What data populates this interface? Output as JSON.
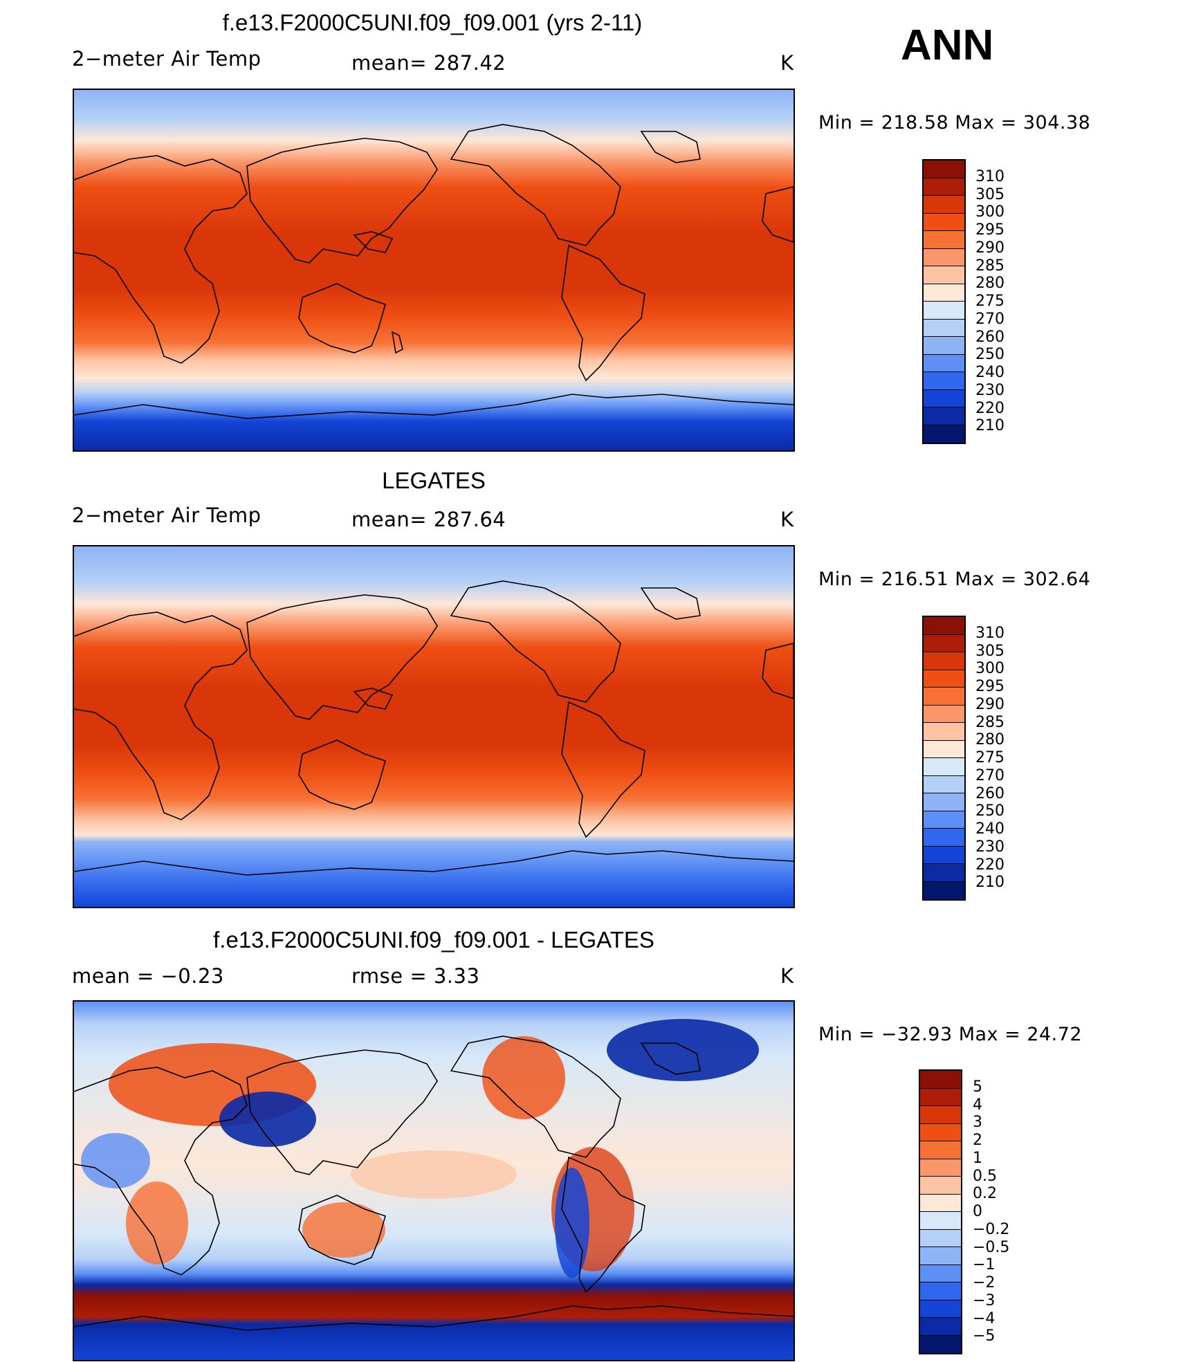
{
  "header": {
    "season": "ANN"
  },
  "panels": [
    {
      "title": "f.e13.F2000C5UNI.f09_f09.001 (yrs 2-11)",
      "left_label": "2−meter Air Temp",
      "center_label": "mean=  287.42",
      "units": "K",
      "minmax": "Min  =  218.58  Max  =  304.38",
      "levels": [
        "310",
        "305",
        "300",
        "295",
        "290",
        "285",
        "280",
        "275",
        "270",
        "260",
        "250",
        "240",
        "230",
        "220",
        "210"
      ],
      "colors": [
        "#8b1005",
        "#ae1d07",
        "#d93609",
        "#ef4f13",
        "#f87134",
        "#fa9669",
        "#fcc4a4",
        "#fde7d7",
        "#d7e8f9",
        "#b5d0f7",
        "#8fb4f6",
        "#5d8ff5",
        "#2f68ed",
        "#1445d6",
        "#0a2aa6",
        "#04176e"
      ]
    },
    {
      "title": "LEGATES",
      "left_label": "2−meter Air Temp",
      "center_label": "mean=  287.64",
      "units": "K",
      "minmax": "Min  =  216.51  Max  =  302.64",
      "levels": [
        "310",
        "305",
        "300",
        "295",
        "290",
        "285",
        "280",
        "275",
        "270",
        "260",
        "250",
        "240",
        "230",
        "220",
        "210"
      ],
      "colors": [
        "#8b1005",
        "#ae1d07",
        "#d93609",
        "#ef4f13",
        "#f87134",
        "#fa9669",
        "#fcc4a4",
        "#fde7d7",
        "#d7e8f9",
        "#b5d0f7",
        "#8fb4f6",
        "#5d8ff5",
        "#2f68ed",
        "#1445d6",
        "#0a2aa6",
        "#04176e"
      ]
    },
    {
      "title": "f.e13.F2000C5UNI.f09_f09.001 - LEGATES",
      "left_label": "mean  =     −0.23",
      "center_label": "rmse  =      3.33",
      "units": "K",
      "minmax": "Min  =  −32.93  Max  =    24.72",
      "levels": [
        "5",
        "4",
        "3",
        "2",
        "1",
        "0.5",
        "0.2",
        "0",
        "−0.2",
        "−0.5",
        "−1",
        "−2",
        "−3",
        "−4",
        "−5"
      ],
      "colors": [
        "#8b1005",
        "#ae1d07",
        "#d93609",
        "#ef4f13",
        "#f87134",
        "#fa9669",
        "#fcc4a4",
        "#fde7d7",
        "#d7e8f9",
        "#b5d0f7",
        "#8fb4f6",
        "#5d8ff5",
        "#2f68ed",
        "#1445d6",
        "#0a2aa6",
        "#04176e"
      ]
    }
  ]
}
